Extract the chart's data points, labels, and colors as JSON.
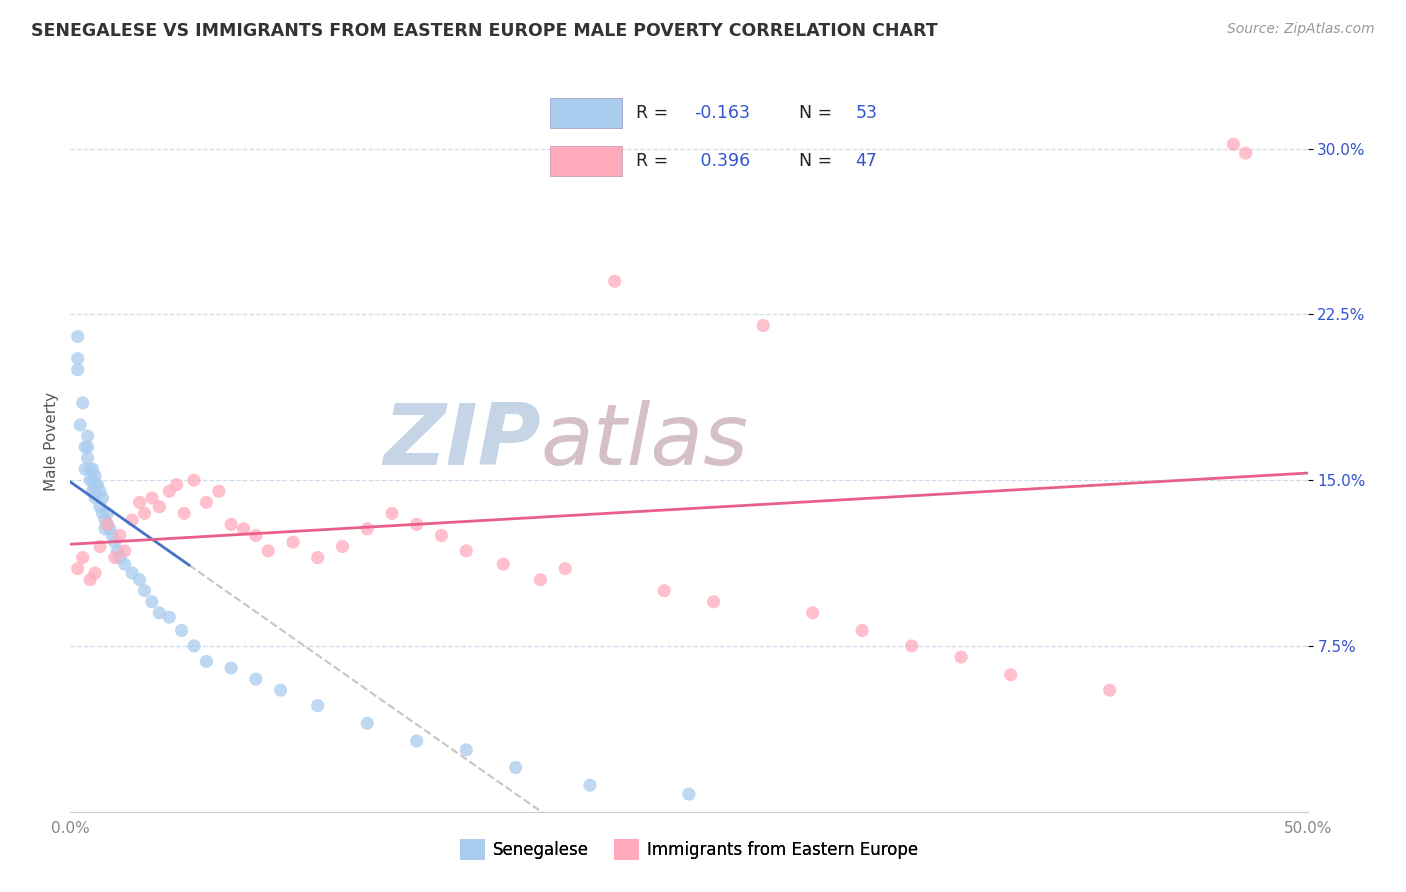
{
  "title": "SENEGALESE VS IMMIGRANTS FROM EASTERN EUROPE MALE POVERTY CORRELATION CHART",
  "source": "Source: ZipAtlas.com",
  "ylabel": "Male Poverty",
  "xlim": [
    0.0,
    0.5
  ],
  "ylim": [
    0.0,
    0.335
  ],
  "yticks": [
    0.075,
    0.15,
    0.225,
    0.3
  ],
  "ytick_labels": [
    "7.5%",
    "15.0%",
    "22.5%",
    "30.0%"
  ],
  "xticks": [
    0.0,
    0.1,
    0.2,
    0.3,
    0.4,
    0.5
  ],
  "xtick_labels": [
    "0.0%",
    "",
    "",
    "",
    "",
    "50.0%"
  ],
  "blue_color": "#aaccee",
  "pink_color": "#ffaabb",
  "pink_line_color": "#e8608a",
  "blue_line_color": "#4472c4",
  "watermark_zip": "ZIP",
  "watermark_atlas": "atlas",
  "watermark_color_zip": "#c5d5e5",
  "watermark_color_atlas": "#d5c0c8",
  "r_color": "#3355cc",
  "title_color": "#333333",
  "axis_label_color": "#555555",
  "tick_color": "#888888",
  "grid_color": "#ccddee",
  "background_color": "#ffffff",
  "blue_scatter_x": [
    0.003,
    0.003,
    0.003,
    0.004,
    0.005,
    0.006,
    0.006,
    0.007,
    0.007,
    0.007,
    0.008,
    0.008,
    0.009,
    0.009,
    0.009,
    0.01,
    0.01,
    0.01,
    0.01,
    0.011,
    0.012,
    0.012,
    0.013,
    0.013,
    0.014,
    0.014,
    0.015,
    0.015,
    0.016,
    0.017,
    0.018,
    0.019,
    0.02,
    0.022,
    0.025,
    0.028,
    0.03,
    0.033,
    0.036,
    0.04,
    0.045,
    0.05,
    0.055,
    0.065,
    0.075,
    0.085,
    0.1,
    0.12,
    0.14,
    0.16,
    0.18,
    0.21,
    0.25
  ],
  "blue_scatter_y": [
    0.2,
    0.215,
    0.205,
    0.175,
    0.185,
    0.165,
    0.155,
    0.16,
    0.165,
    0.17,
    0.155,
    0.15,
    0.145,
    0.15,
    0.155,
    0.148,
    0.142,
    0.145,
    0.152,
    0.148,
    0.145,
    0.138,
    0.142,
    0.135,
    0.132,
    0.128,
    0.135,
    0.13,
    0.128,
    0.125,
    0.122,
    0.118,
    0.115,
    0.112,
    0.108,
    0.105,
    0.1,
    0.095,
    0.09,
    0.088,
    0.082,
    0.075,
    0.068,
    0.065,
    0.06,
    0.055,
    0.048,
    0.04,
    0.032,
    0.028,
    0.02,
    0.012,
    0.008
  ],
  "pink_scatter_x": [
    0.003,
    0.005,
    0.008,
    0.01,
    0.012,
    0.015,
    0.018,
    0.02,
    0.022,
    0.025,
    0.028,
    0.03,
    0.033,
    0.036,
    0.04,
    0.043,
    0.046,
    0.05,
    0.055,
    0.06,
    0.065,
    0.07,
    0.075,
    0.08,
    0.09,
    0.1,
    0.11,
    0.12,
    0.13,
    0.14,
    0.15,
    0.16,
    0.175,
    0.19,
    0.2,
    0.22,
    0.24,
    0.26,
    0.28,
    0.3,
    0.32,
    0.34,
    0.36,
    0.38,
    0.42,
    0.47,
    0.475
  ],
  "pink_scatter_y": [
    0.11,
    0.115,
    0.105,
    0.108,
    0.12,
    0.13,
    0.115,
    0.125,
    0.118,
    0.132,
    0.14,
    0.135,
    0.142,
    0.138,
    0.145,
    0.148,
    0.135,
    0.15,
    0.14,
    0.145,
    0.13,
    0.128,
    0.125,
    0.118,
    0.122,
    0.115,
    0.12,
    0.128,
    0.135,
    0.13,
    0.125,
    0.118,
    0.112,
    0.105,
    0.11,
    0.24,
    0.1,
    0.095,
    0.22,
    0.09,
    0.082,
    0.075,
    0.07,
    0.062,
    0.055,
    0.302,
    0.298
  ]
}
